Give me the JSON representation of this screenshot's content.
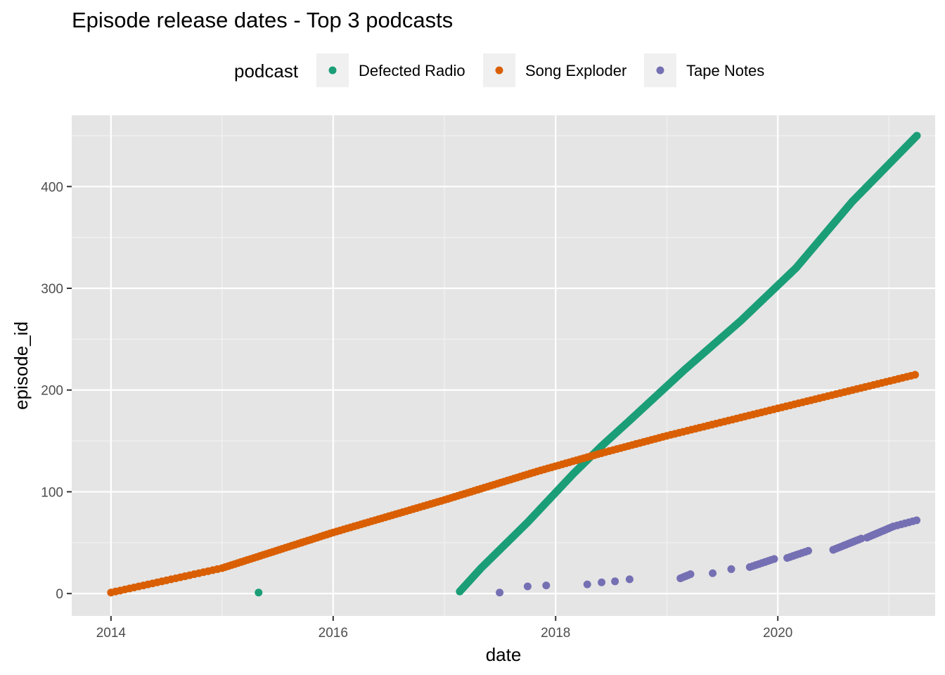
{
  "chart_data": {
    "type": "scatter",
    "title": "Episode release dates - Top 3 podcasts",
    "xlabel": "date",
    "ylabel": "episode_id",
    "x_axis_type": "date",
    "xlim": [
      "2013-08-25",
      "2021-06-01"
    ],
    "ylim": [
      -22,
      470
    ],
    "x_ticks": [
      "2014",
      "2016",
      "2018",
      "2020"
    ],
    "y_ticks": [
      "0",
      "100",
      "200",
      "300",
      "400"
    ],
    "grid": true,
    "panel_background": "#E5E5E5",
    "legend": {
      "title": "podcast",
      "placement": "top",
      "entries": [
        "Defected Radio",
        "Song Exploder",
        "Tape Notes"
      ]
    },
    "series": [
      {
        "name": "Defected Radio",
        "color": "#1B9E77",
        "pattern": "episode 1 released 2015-05-01; episodes 2-450 released roughly weekly from 2017-02-20 to 2021-04-02",
        "points": [
          {
            "x": "2015-05-01",
            "y": 1
          },
          {
            "x": "2017-02-20",
            "y": 2
          },
          {
            "x": "2017-05-01",
            "y": 25
          },
          {
            "x": "2017-10-01",
            "y": 70
          },
          {
            "x": "2018-03-01",
            "y": 118
          },
          {
            "x": "2018-06-01",
            "y": 145
          },
          {
            "x": "2018-09-01",
            "y": 170
          },
          {
            "x": "2019-03-01",
            "y": 220
          },
          {
            "x": "2019-09-01",
            "y": 268
          },
          {
            "x": "2020-03-01",
            "y": 320
          },
          {
            "x": "2020-09-01",
            "y": 385
          },
          {
            "x": "2021-04-02",
            "y": 450
          }
        ]
      },
      {
        "name": "Song Exploder",
        "color": "#D95F02",
        "pattern": "episodes 1-215 released roughly every 12 days from 2014-01-01 to 2021-03-27",
        "points": [
          {
            "x": "2014-01-01",
            "y": 1
          },
          {
            "x": "2015-01-01",
            "y": 25
          },
          {
            "x": "2016-01-01",
            "y": 60
          },
          {
            "x": "2017-01-01",
            "y": 92
          },
          {
            "x": "2017-11-01",
            "y": 120
          },
          {
            "x": "2018-06-01",
            "y": 138
          },
          {
            "x": "2019-01-01",
            "y": 155
          },
          {
            "x": "2020-01-01",
            "y": 182
          },
          {
            "x": "2021-03-27",
            "y": 215
          }
        ]
      },
      {
        "name": "Tape Notes",
        "color": "#7570B3",
        "pattern": "episodes released in seasons from 2017-07 to 2021-04",
        "points": [
          {
            "x": "2017-07-01",
            "y": 1
          },
          {
            "x": "2017-10-01",
            "y": 7
          },
          {
            "x": "2017-12-01",
            "y": 8
          },
          {
            "x": "2018-04-15",
            "y": 9
          },
          {
            "x": "2018-06-01",
            "y": 11
          },
          {
            "x": "2018-07-15",
            "y": 12
          },
          {
            "x": "2018-09-01",
            "y": 14
          },
          {
            "x": "2019-02-15",
            "y": 15
          },
          {
            "x": "2019-03-20",
            "y": 19
          },
          {
            "x": "2019-06-01",
            "y": 20
          },
          {
            "x": "2019-08-01",
            "y": 24
          },
          {
            "x": "2019-10-01",
            "y": 26
          },
          {
            "x": "2019-12-20",
            "y": 34
          },
          {
            "x": "2020-02-01",
            "y": 35
          },
          {
            "x": "2020-04-10",
            "y": 42
          },
          {
            "x": "2020-07-01",
            "y": 43
          },
          {
            "x": "2020-10-01",
            "y": 54
          },
          {
            "x": "2020-10-20",
            "y": 55
          },
          {
            "x": "2021-01-15",
            "y": 66
          },
          {
            "x": "2021-04-01",
            "y": 72
          }
        ]
      }
    ]
  }
}
